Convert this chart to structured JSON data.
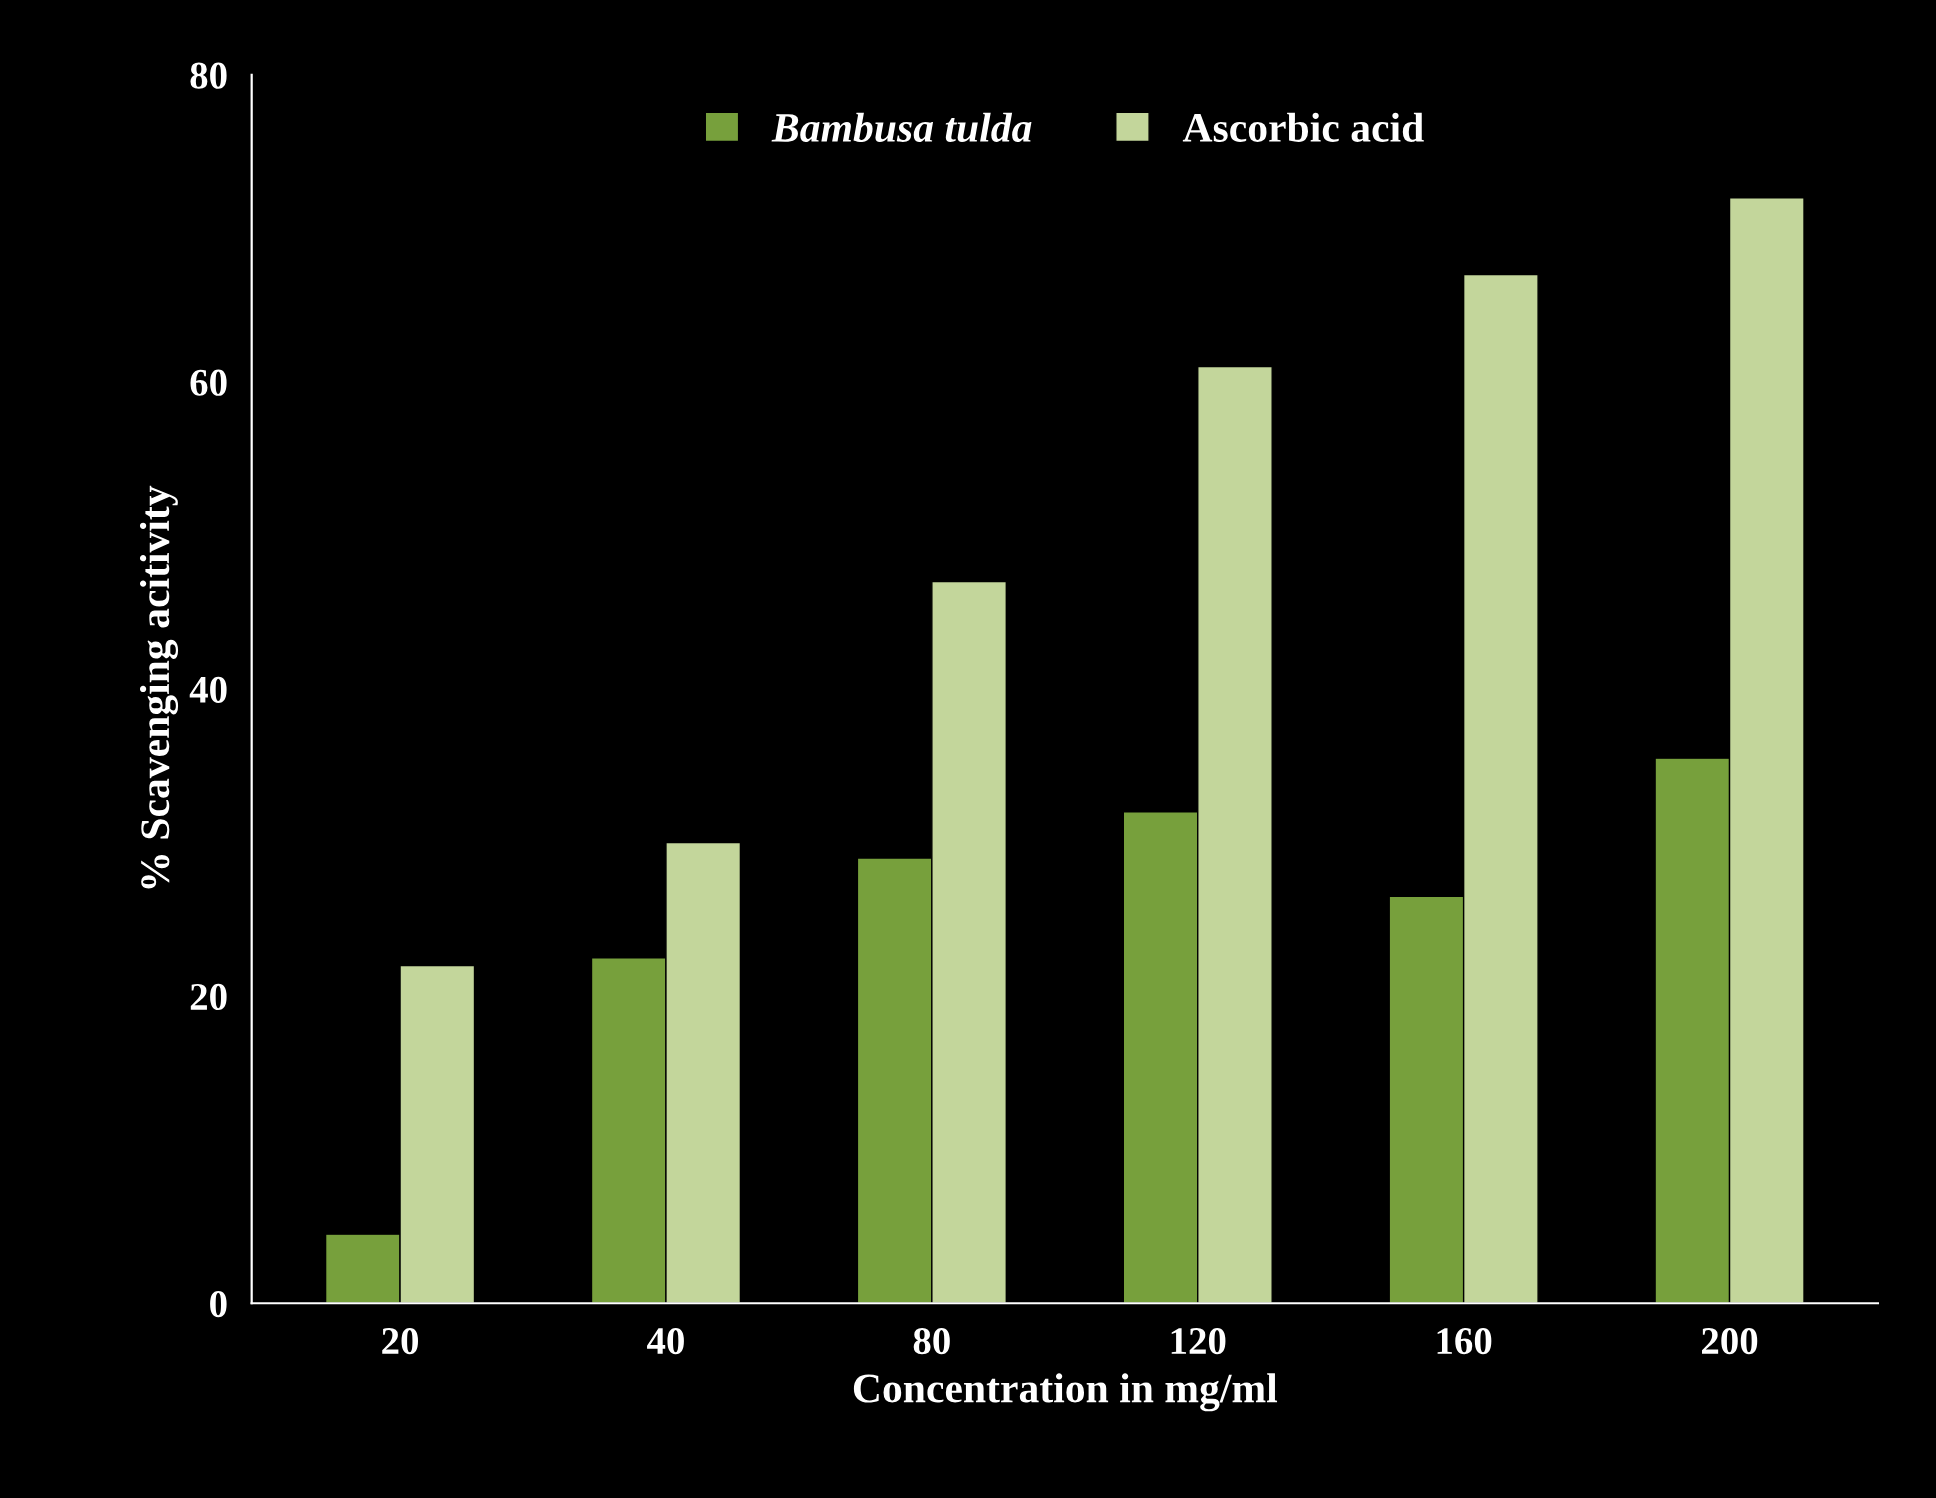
{
  "chart_data": {
    "type": "bar",
    "xlabel": "Concentration in mg/ml",
    "ylabel": "% Scavenging acitivity",
    "categories": [
      "20",
      "40",
      "80",
      "120",
      "160",
      "200"
    ],
    "series": [
      {
        "name": "Bambusa tulda",
        "color": "#77a03c",
        "values": [
          4.5,
          22.5,
          29,
          32,
          26.5,
          35.5
        ]
      },
      {
        "name": "Ascorbic acid",
        "color": "#c3d69b",
        "values": [
          22,
          30,
          47,
          61,
          67,
          72
        ]
      }
    ],
    "ylim": [
      0,
      80
    ],
    "yticks": [
      0,
      20,
      40,
      60,
      80
    ],
    "grid": false,
    "legend": "top"
  }
}
